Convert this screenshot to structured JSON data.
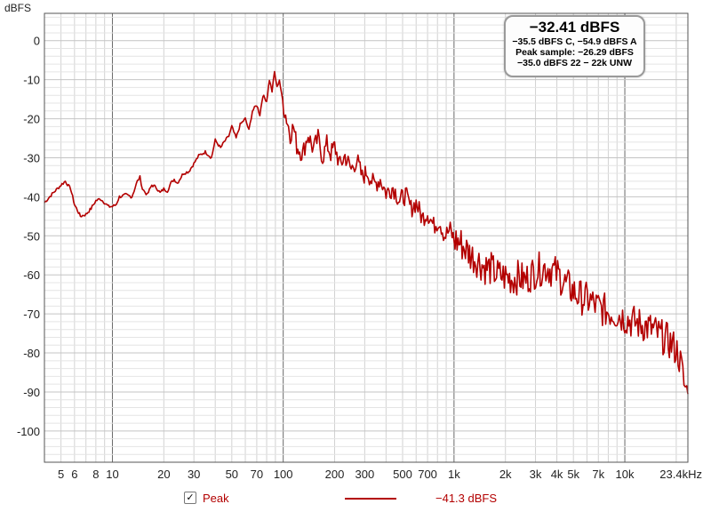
{
  "chart_data": {
    "type": "line",
    "ylabel": "dBFS",
    "xlabel": "",
    "x_scale": "log",
    "xlim": [
      4,
      23400
    ],
    "ylim": [
      -108,
      7
    ],
    "grid": true,
    "y_ticks": [
      0,
      -10,
      -20,
      -30,
      -40,
      -50,
      -60,
      -70,
      -80,
      -90,
      -100
    ],
    "x_ticks": [
      {
        "value": 5,
        "label": "5"
      },
      {
        "value": 6,
        "label": "6"
      },
      {
        "value": 8,
        "label": "8"
      },
      {
        "value": 10,
        "label": "10"
      },
      {
        "value": 20,
        "label": "20"
      },
      {
        "value": 30,
        "label": "30"
      },
      {
        "value": 50,
        "label": "50"
      },
      {
        "value": 70,
        "label": "70"
      },
      {
        "value": 100,
        "label": "100"
      },
      {
        "value": 200,
        "label": "200"
      },
      {
        "value": 300,
        "label": "300"
      },
      {
        "value": 500,
        "label": "500"
      },
      {
        "value": 700,
        "label": "700"
      },
      {
        "value": 1000,
        "label": "1k"
      },
      {
        "value": 2000,
        "label": "2k"
      },
      {
        "value": 3000,
        "label": "3k"
      },
      {
        "value": 4000,
        "label": "4k"
      },
      {
        "value": 5000,
        "label": "5k"
      },
      {
        "value": 7000,
        "label": "7k"
      },
      {
        "value": 10000,
        "label": "10k"
      },
      {
        "value": 23400,
        "label": "23.4kHz"
      }
    ],
    "series": [
      {
        "name": "Peak",
        "color": "#b30000",
        "points": [
          [
            4,
            -41.5
          ],
          [
            4.5,
            -39
          ],
          [
            5,
            -37
          ],
          [
            5.3,
            -36
          ],
          [
            5.7,
            -38
          ],
          [
            6,
            -42
          ],
          [
            6.5,
            -45
          ],
          [
            7,
            -44.5
          ],
          [
            7.5,
            -43
          ],
          [
            8,
            -41
          ],
          [
            8.5,
            -40.5
          ],
          [
            9,
            -41.5
          ],
          [
            9.5,
            -42.5
          ],
          [
            10,
            -42.5
          ],
          [
            10.5,
            -42
          ],
          [
            11,
            -40
          ],
          [
            12,
            -39.5
          ],
          [
            13,
            -40
          ],
          [
            14,
            -36
          ],
          [
            14.5,
            -35
          ],
          [
            15,
            -38
          ],
          [
            16,
            -39.5
          ],
          [
            17,
            -37
          ],
          [
            18,
            -37.5
          ],
          [
            19,
            -39
          ],
          [
            20,
            -38
          ],
          [
            21,
            -38.5
          ],
          [
            22,
            -36.5
          ],
          [
            23,
            -35.5
          ],
          [
            24,
            -36.5
          ],
          [
            26,
            -34
          ],
          [
            28,
            -33.5
          ],
          [
            30,
            -31.5
          ],
          [
            32,
            -29.5
          ],
          [
            35,
            -28.5
          ],
          [
            38,
            -30
          ],
          [
            40,
            -25.5
          ],
          [
            43,
            -27.5
          ],
          [
            45,
            -26
          ],
          [
            48,
            -24.5
          ],
          [
            50,
            -22
          ],
          [
            53,
            -25
          ],
          [
            56,
            -21.5
          ],
          [
            60,
            -20
          ],
          [
            63,
            -23
          ],
          [
            66,
            -18
          ],
          [
            70,
            -16.5
          ],
          [
            73,
            -19
          ],
          [
            76,
            -14
          ],
          [
            80,
            -15.5
          ],
          [
            83,
            -10
          ],
          [
            86,
            -13
          ],
          [
            89,
            -8
          ],
          [
            92,
            -12
          ],
          [
            95,
            -10
          ],
          [
            98,
            -14
          ],
          [
            102,
            -18
          ],
          [
            106,
            -21
          ],
          [
            110,
            -24
          ],
          [
            115,
            -22
          ],
          [
            120,
            -27
          ],
          [
            130,
            -29
          ],
          [
            140,
            -24
          ],
          [
            150,
            -28
          ],
          [
            160,
            -25
          ],
          [
            170,
            -30
          ],
          [
            180,
            -26.5
          ],
          [
            190,
            -29
          ],
          [
            200,
            -27
          ],
          [
            215,
            -32
          ],
          [
            230,
            -29.5
          ],
          [
            250,
            -33
          ],
          [
            270,
            -30.5
          ],
          [
            290,
            -35
          ],
          [
            310,
            -33.5
          ],
          [
            340,
            -37
          ],
          [
            370,
            -35.5
          ],
          [
            400,
            -39
          ],
          [
            440,
            -37.5
          ],
          [
            480,
            -41
          ],
          [
            520,
            -39.5
          ],
          [
            560,
            -43
          ],
          [
            600,
            -41.5
          ],
          [
            650,
            -45.5
          ],
          [
            700,
            -44
          ],
          [
            760,
            -47.5
          ],
          [
            820,
            -46
          ],
          [
            880,
            -50
          ],
          [
            950,
            -48.5
          ],
          [
            1000,
            -51
          ],
          [
            1100,
            -52
          ],
          [
            1200,
            -54
          ],
          [
            1300,
            -55.5
          ],
          [
            1400,
            -56.5
          ],
          [
            1500,
            -58
          ],
          [
            1650,
            -58.5
          ],
          [
            1800,
            -60
          ],
          [
            2000,
            -60.5
          ],
          [
            2200,
            -61
          ],
          [
            2400,
            -60.5
          ],
          [
            2600,
            -61.5
          ],
          [
            2800,
            -60
          ],
          [
            3000,
            -59
          ],
          [
            3200,
            -58.5
          ],
          [
            3500,
            -58
          ],
          [
            3800,
            -59
          ],
          [
            4100,
            -60
          ],
          [
            4400,
            -62
          ],
          [
            4800,
            -63.5
          ],
          [
            5200,
            -65
          ],
          [
            5700,
            -66
          ],
          [
            6200,
            -66.5
          ],
          [
            6800,
            -68
          ],
          [
            7500,
            -69
          ],
          [
            8200,
            -69.5
          ],
          [
            9000,
            -70
          ],
          [
            10000,
            -71
          ],
          [
            11000,
            -72
          ],
          [
            12000,
            -72.5
          ],
          [
            13000,
            -73
          ],
          [
            14500,
            -74
          ],
          [
            16000,
            -75.5
          ],
          [
            17500,
            -76.5
          ],
          [
            19000,
            -78
          ],
          [
            20500,
            -80
          ],
          [
            21500,
            -84
          ],
          [
            22200,
            -88
          ],
          [
            23000,
            -90
          ],
          [
            23400,
            -90.5
          ]
        ]
      }
    ]
  },
  "readout": {
    "main": "−32.41 dBFS",
    "line1": "−35.5 dBFS C, −54.9 dBFS A",
    "line2": "Peak sample: −26.29 dBFS",
    "line3": "−35.0 dBFS 22 − 22k UNW"
  },
  "legend": {
    "checkbox_mark": "✓",
    "series_label": "Peak",
    "level": "−41.3 dBFS"
  }
}
